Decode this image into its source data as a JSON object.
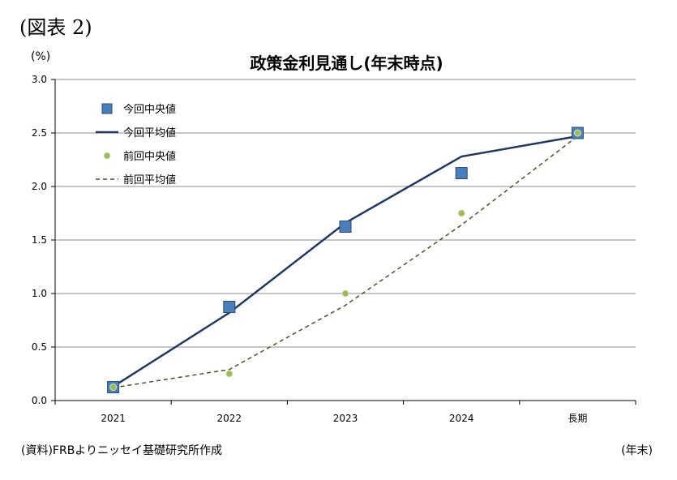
{
  "figure_label": "(図表 2)",
  "unit_label": "(%)",
  "source_note": "(資料)FRBよりニッセイ基礎研究所作成",
  "x_unit_note": "(年末)",
  "chart_data": {
    "type": "line",
    "title": "政策金利見通し(年末時点)",
    "categories": [
      "2021",
      "2022",
      "2023",
      "2024",
      "長期"
    ],
    "ylim": [
      0,
      3.0
    ],
    "yticks": [
      "0.0",
      "0.5",
      "1.0",
      "1.5",
      "2.0",
      "2.5",
      "3.0"
    ],
    "grid": true,
    "legend_position": "top-left",
    "series": [
      {
        "name": "今回中央値",
        "style": "marker-square",
        "color": "#4a7ebb",
        "values": [
          0.125,
          0.875,
          1.625,
          2.125,
          2.5
        ]
      },
      {
        "name": "今回平均値",
        "style": "solid-line",
        "color": "#1f3864",
        "values": [
          0.13,
          0.82,
          1.66,
          2.28,
          2.47
        ]
      },
      {
        "name": "前回中央値",
        "style": "marker-circle",
        "color": "#9bbb59",
        "values": [
          0.125,
          0.25,
          1.0,
          1.75,
          2.5
        ]
      },
      {
        "name": "前回平均値",
        "style": "dashed-line",
        "color": "#4f4f2a",
        "values": [
          0.12,
          0.29,
          0.89,
          1.64,
          2.47
        ]
      }
    ]
  }
}
